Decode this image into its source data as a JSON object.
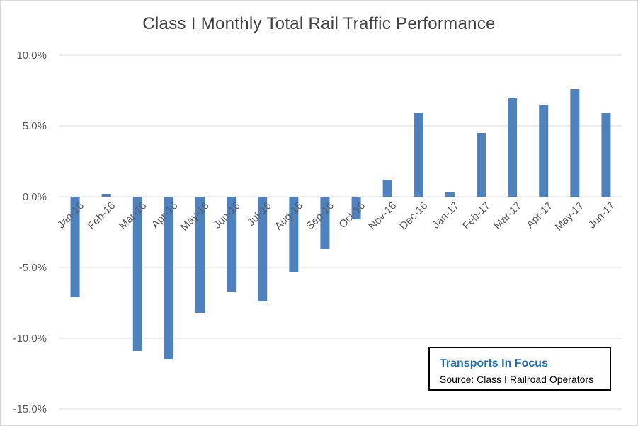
{
  "chart_data": {
    "type": "bar",
    "title": "Class I Monthly Total Rail Traffic Performance",
    "xlabel": "",
    "ylabel": "",
    "categories": [
      "Jan-16",
      "Feb-16",
      "Mar-16",
      "Apr-16",
      "May-16",
      "Jun-16",
      "Jul-16",
      "Aug-16",
      "Sep-16",
      "Oct-16",
      "Nov-16",
      "Dec-16",
      "Jan-17",
      "Feb-17",
      "Mar-17",
      "Apr-17",
      "May-17",
      "Jun-17"
    ],
    "values": [
      -7.1,
      0.2,
      -10.9,
      -11.5,
      -8.2,
      -6.7,
      -7.4,
      -5.3,
      -3.7,
      -1.6,
      1.2,
      5.9,
      0.3,
      4.5,
      7.0,
      6.5,
      7.6,
      5.9
    ],
    "ylim": [
      -15,
      10
    ],
    "yticks": [
      "10.0%",
      "5.0%",
      "0.0%",
      "-5.0%",
      "-10.0%",
      "-15.0%"
    ],
    "ytick_values": [
      10,
      5,
      0,
      -5,
      -10,
      -15
    ],
    "grid": true,
    "bar_color": "#4f81bd",
    "grid_color": "#d9d9d9"
  },
  "annotation": {
    "brand": "Transports  In Focus",
    "source": "Source: Class I Railroad Operators"
  }
}
